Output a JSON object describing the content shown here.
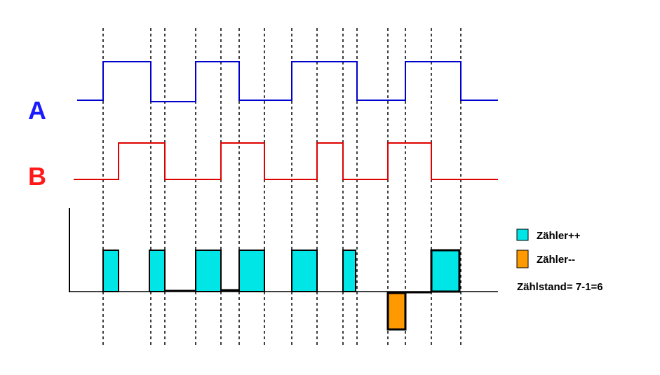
{
  "signals": {
    "a": {
      "label": "A"
    },
    "b": {
      "label": "B"
    }
  },
  "legend": {
    "items": [
      {
        "label": "Zähler++"
      },
      {
        "label": "Zähler--"
      }
    ],
    "note": "Zählstand= 7-1=6"
  }
}
